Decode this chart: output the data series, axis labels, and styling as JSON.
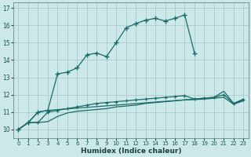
{
  "xlabel": "Humidex (Indice chaleur)",
  "bg_color": "#cce8e8",
  "grid_color": "#aacccc",
  "line_color": "#1a6b6b",
  "xlim": [
    -0.5,
    23.5
  ],
  "ylim": [
    9.5,
    17.3
  ],
  "xticks": [
    0,
    1,
    2,
    3,
    4,
    5,
    6,
    7,
    8,
    9,
    10,
    11,
    12,
    13,
    14,
    15,
    16,
    17,
    18,
    19,
    20,
    21,
    22,
    23
  ],
  "yticks": [
    10,
    11,
    12,
    13,
    14,
    15,
    16,
    17
  ],
  "curve1_x": [
    0,
    1,
    2,
    3,
    4,
    5,
    6,
    7,
    8,
    9,
    10,
    11,
    12,
    13,
    14,
    15,
    16,
    17,
    18
  ],
  "curve1_y": [
    10.0,
    10.4,
    11.0,
    11.1,
    13.2,
    13.3,
    13.55,
    14.3,
    14.4,
    14.2,
    15.0,
    15.85,
    16.1,
    16.3,
    16.4,
    16.25,
    16.4,
    16.6,
    14.4
  ],
  "curve2_x": [
    0,
    1,
    2,
    3,
    18,
    19,
    20,
    21,
    22,
    23
  ],
  "curve2_y": [
    10.0,
    10.4,
    11.0,
    11.1,
    11.75,
    11.8,
    11.85,
    12.2,
    11.5,
    11.75
  ],
  "curve3_x": [
    0,
    1,
    2,
    3,
    4,
    5,
    6,
    7,
    8,
    9,
    10,
    11,
    12,
    13,
    14,
    15,
    16,
    17,
    18,
    19,
    20,
    21,
    22,
    23
  ],
  "curve3_y": [
    10.0,
    10.4,
    10.4,
    11.0,
    11.1,
    11.2,
    11.3,
    11.4,
    11.5,
    11.55,
    11.6,
    11.65,
    11.7,
    11.75,
    11.8,
    11.85,
    11.9,
    11.95,
    11.75,
    11.8,
    11.85,
    12.0,
    11.5,
    11.7
  ],
  "curve4_x": [
    0,
    1,
    2,
    3,
    4,
    5,
    6,
    7,
    8,
    9,
    10,
    11,
    12,
    13,
    14,
    15,
    16,
    17,
    18,
    19,
    20,
    21,
    22,
    23
  ],
  "curve4_y": [
    10.0,
    10.4,
    10.4,
    10.45,
    10.75,
    10.95,
    11.05,
    11.1,
    11.15,
    11.2,
    11.3,
    11.35,
    11.4,
    11.5,
    11.55,
    11.6,
    11.65,
    11.7,
    11.72,
    11.75,
    11.8,
    11.85,
    11.45,
    11.65
  ]
}
